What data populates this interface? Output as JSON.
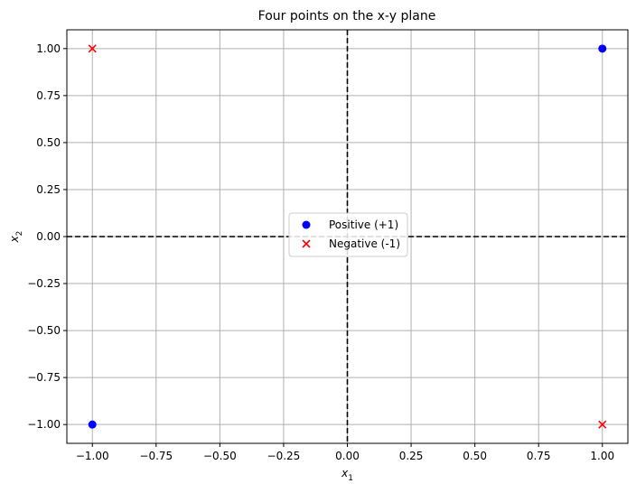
{
  "chart_data": {
    "type": "scatter",
    "title": "Four points on the x-y plane",
    "xlabel": "x",
    "xlabel_sub": "1",
    "ylabel": "x",
    "ylabel_sub": "2",
    "xlim": [
      -1.1,
      1.1
    ],
    "ylim": [
      -1.1,
      1.1
    ],
    "xticks": [
      -1.0,
      -0.75,
      -0.5,
      -0.25,
      0.0,
      0.25,
      0.5,
      0.75,
      1.0
    ],
    "yticks": [
      -1.0,
      -0.75,
      -0.5,
      -0.25,
      0.0,
      0.25,
      0.5,
      0.75,
      1.0
    ],
    "xtick_labels": [
      "−1.00",
      "−0.75",
      "−0.50",
      "−0.25",
      "0.00",
      "0.25",
      "0.50",
      "0.75",
      "1.00"
    ],
    "ytick_labels": [
      "−1.00",
      "−0.75",
      "−0.50",
      "−0.25",
      "0.00",
      "0.25",
      "0.50",
      "0.75",
      "1.00"
    ],
    "grid": true,
    "reference_lines": {
      "x": 0,
      "y": 0,
      "style": "dashed",
      "color": "#000000"
    },
    "legend_position": "center",
    "series": [
      {
        "name": "Positive (+1)",
        "marker": "circle",
        "color": "#0000ff",
        "points": [
          [
            1,
            1
          ],
          [
            -1,
            -1
          ]
        ]
      },
      {
        "name": "Negative (-1)",
        "marker": "x",
        "color": "#ff0000",
        "points": [
          [
            -1,
            1
          ],
          [
            1,
            -1
          ]
        ]
      }
    ]
  }
}
